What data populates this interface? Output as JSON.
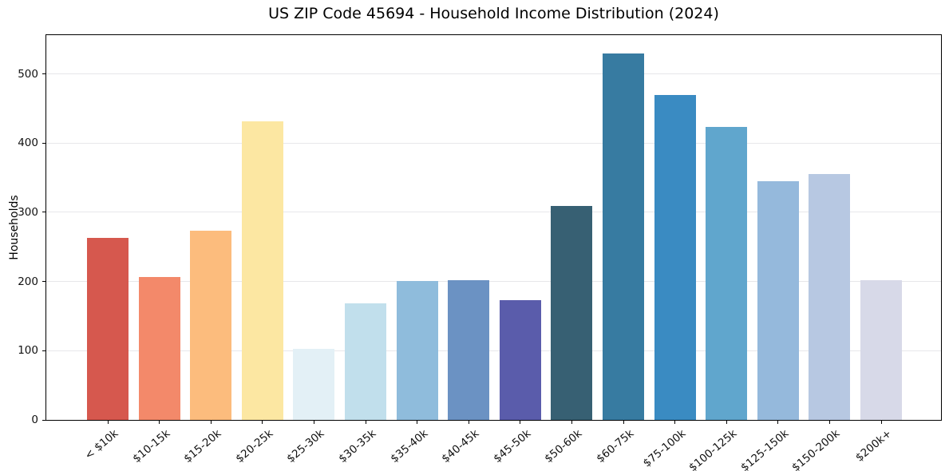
{
  "chart_data": {
    "type": "bar",
    "title": "US ZIP Code 45694 - Household Income Distribution (2024)",
    "xlabel": "",
    "ylabel": "Households",
    "categories": [
      "< $10k",
      "$10-15k",
      "$15-20k",
      "$20-25k",
      "$25-30k",
      "$30-35k",
      "$35-40k",
      "$40-45k",
      "$45-50k",
      "$50-60k",
      "$60-75k",
      "$75-100k",
      "$100-125k",
      "$125-150k",
      "$150-200k",
      "$200k+"
    ],
    "values": [
      263,
      207,
      273,
      432,
      103,
      169,
      201,
      202,
      173,
      309,
      529,
      470,
      423,
      345,
      355,
      202
    ],
    "bar_colors": [
      "#d6584e",
      "#f3896a",
      "#fcbc7d",
      "#fce7a2",
      "#e3f0f6",
      "#c1dfec",
      "#8fbcdc",
      "#6b92c3",
      "#5a5cab",
      "#376073",
      "#377ba1",
      "#3a8bc2",
      "#60a6cd",
      "#95b9dc",
      "#b7c8e2",
      "#d7d9e8"
    ],
    "ylim": [
      0,
      556
    ],
    "yticks": [
      0,
      100,
      200,
      300,
      400,
      500
    ],
    "grid": "horizontal",
    "legend": "none"
  },
  "colors": {
    "grid": "#e7e7ea",
    "spine": "#000000",
    "text": "#111111",
    "background": "#ffffff"
  }
}
